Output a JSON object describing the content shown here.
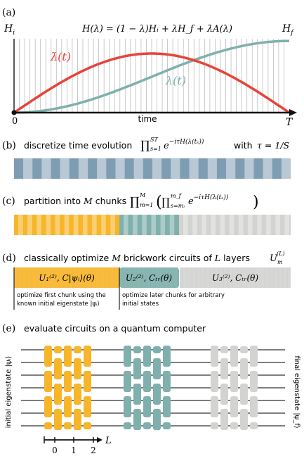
{
  "colors": {
    "lambda_dot": "#e8433a",
    "lambda": "#7fb0ad",
    "chunk1": "#f7b52a",
    "chunk2": "#7fb0ad",
    "chunk3": "#d3d3d1",
    "stripe_dark": "#7f9db2",
    "stripe_light": "#b8c8d4",
    "grid": "#bdbdbd",
    "wire": "#333333"
  },
  "panel_a": {
    "tag": "(a)",
    "hi_label": "H",
    "hi_sub": "i",
    "hf_label": "H",
    "hf_sub": "f",
    "hamiltonian": "H(λ) = (1 − λ)Hᵢ + λH_f + λ̇A(λ)",
    "lambda_dot_label": "λ̇(t)",
    "lambda_label": "λ(t)",
    "x0_label": "0",
    "xT_label": "T",
    "time_label": "time"
  },
  "panel_b": {
    "tag": "(b)",
    "text_a": "discretize time evolution",
    "math_product": "∏ e^{−iτH(λ(tₛ))}",
    "prod_upper": "ST",
    "prod_lower": "s=1",
    "text_b": "with",
    "tau_math": "τ = 1/S"
  },
  "panel_c": {
    "tag": "(c)",
    "text_a": "partition into",
    "M": "M",
    "text_b": "chunks",
    "prod_upper": "M",
    "prod_lower": "m=1",
    "inner_upper": "m_f",
    "inner_lower": "s=mᵢ",
    "math_body": "e^{−iτH(λ(tₛ))}"
  },
  "panel_d": {
    "tag": "(d)",
    "text_a": "classically optimize",
    "M": "M",
    "text_b": "brickwork circuits of",
    "L": "L",
    "text_c": "layers",
    "U_label": "U",
    "U_sub": "m",
    "U_sup": "(L)",
    "block1": "U₁⁽²⁾, C|ψᵢ⟩(θ)",
    "block2": "U₂⁽²⁾, Cₜᵣ(θ)",
    "block3": "U₃⁽²⁾, Cₜᵣ(θ)",
    "note1": [
      "optimize first chunk using the",
      "known initial eigenstate |ψᵢ⟩"
    ],
    "note2": [
      "optimize later chunks for arbitrary",
      "initial states"
    ]
  },
  "panel_e": {
    "tag": "(e)",
    "title": "evaluate circuits on a quantum computer",
    "left_label": "initial eigenstate |ψᵢ⟩",
    "right_label": "final eigenstate |ψ_f⟩",
    "ticks": [
      "0",
      "1",
      "2"
    ],
    "axis_label": "L"
  }
}
